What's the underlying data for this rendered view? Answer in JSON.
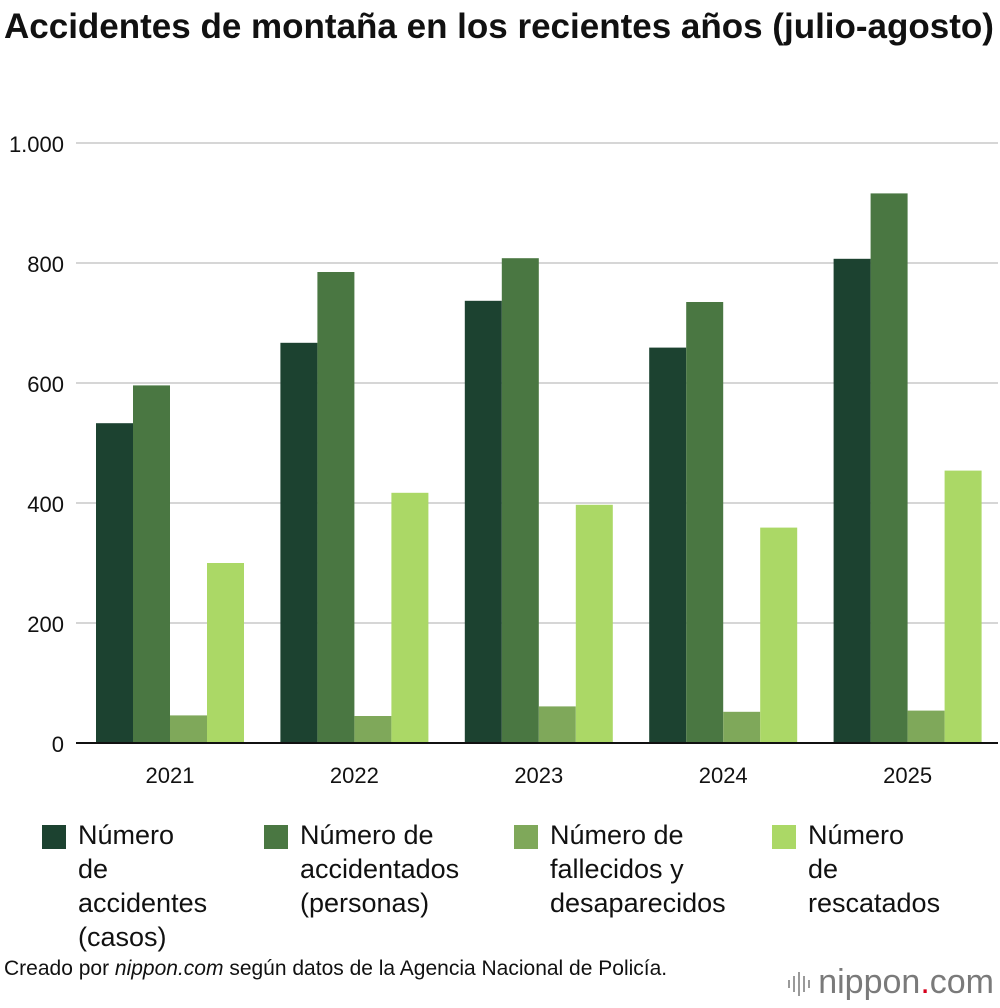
{
  "title": "Accidentes de montaña en los recientes años (julio-agosto)",
  "chart_data": {
    "type": "bar",
    "title": "Accidentes de montaña en los recientes años (julio-agosto)",
    "xlabel": "",
    "ylabel": "",
    "categories": [
      "2021",
      "2022",
      "2023",
      "2024",
      "2025"
    ],
    "ylim": [
      0,
      1000
    ],
    "yticks": [
      0,
      200,
      400,
      600,
      800,
      1000
    ],
    "ytick_labels": [
      "0",
      "200",
      "400",
      "600",
      "800",
      "1.000"
    ],
    "grid": true,
    "legend_position": "bottom",
    "series": [
      {
        "name": "Número de accidentes (casos)",
        "color": "#1c4230",
        "values": [
          533,
          667,
          737,
          659,
          807
        ]
      },
      {
        "name": "Número de accidentados (personas)",
        "color": "#4a7742",
        "values": [
          596,
          785,
          808,
          735,
          916
        ]
      },
      {
        "name": "Número de fallecidos y desaparecidos",
        "color": "#7fa85a",
        "values": [
          46,
          45,
          61,
          52,
          54
        ]
      },
      {
        "name": "Número de rescatados",
        "color": "#abd866",
        "values": [
          300,
          417,
          397,
          359,
          454
        ]
      }
    ]
  },
  "legend": [
    {
      "lines": [
        "Número de",
        "accidentes",
        "(casos)"
      ],
      "color": "#1c4230"
    },
    {
      "lines": [
        "Número de",
        "accidentados",
        "(personas)"
      ],
      "color": "#4a7742"
    },
    {
      "lines": [
        "Número de",
        "fallecidos y",
        "desaparecidos"
      ],
      "color": "#7fa85a"
    },
    {
      "lines": [
        "Número de",
        "rescatados"
      ],
      "color": "#abd866"
    }
  ],
  "footnote": {
    "prefix": "Creado por ",
    "site": "nippon.com",
    "suffix": " según datos de la Agencia Nacional de Policía."
  },
  "brand": {
    "name": "nippon",
    "dot": ".",
    "tld": "com"
  }
}
